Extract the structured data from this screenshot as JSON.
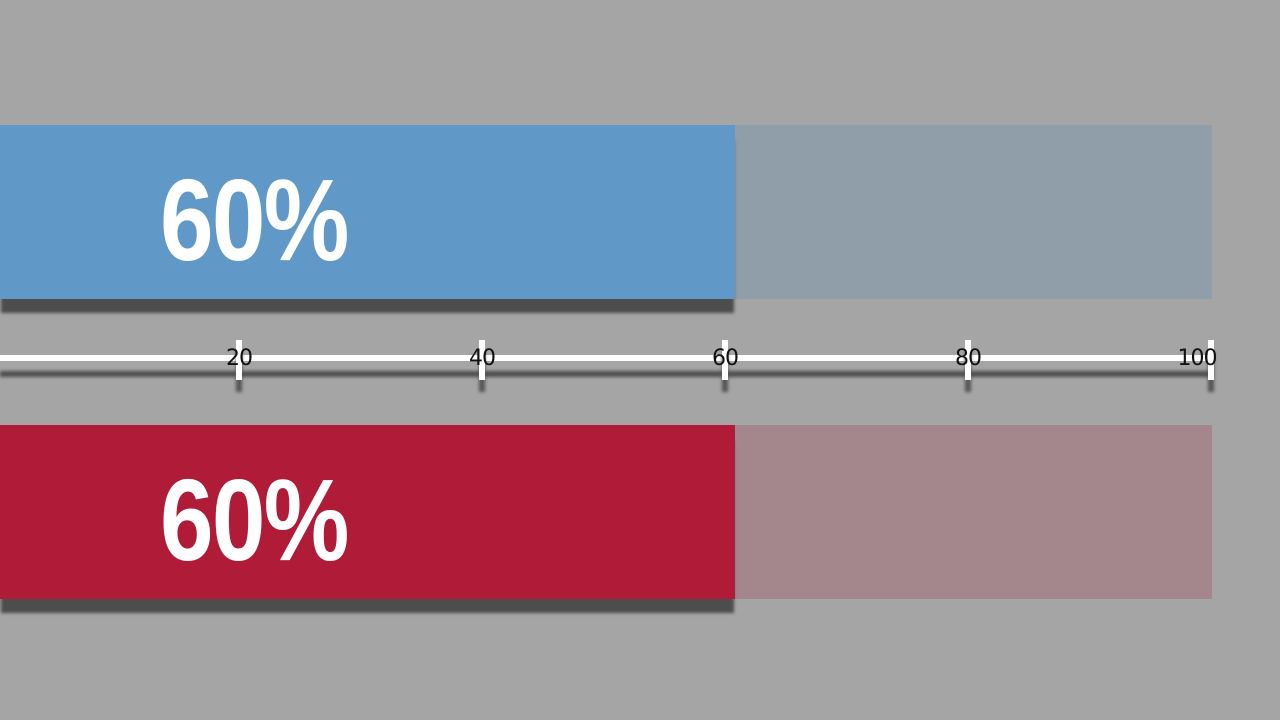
{
  "chart_data": {
    "type": "bar",
    "orientation": "horizontal",
    "xlim": [
      0,
      100
    ],
    "ticks": [
      20,
      40,
      60,
      80,
      100
    ],
    "tick_labels": [
      "20",
      "40",
      "60",
      "80",
      "100"
    ],
    "grid": false,
    "series": [
      {
        "value": 60,
        "label": "60%",
        "color": "#6098c8",
        "track_color": "#8f9ea8"
      },
      {
        "value": 60,
        "label": "60%",
        "color": "#b01c38",
        "track_color": "#a3878c"
      }
    ]
  }
}
